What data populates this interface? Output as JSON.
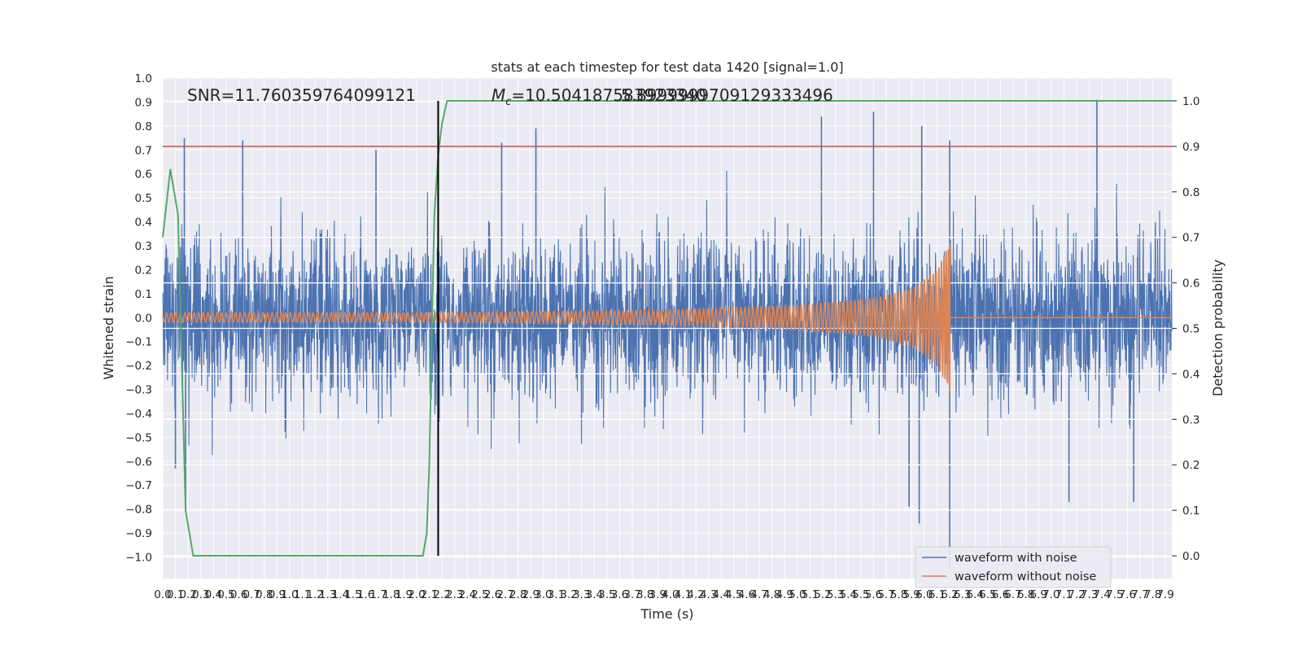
{
  "chart_data": {
    "type": "line",
    "title": "stats at each timestep for test data 1420 [signal=1.0]",
    "xlabel": "Time (s)",
    "ylabel": "Whitened strain",
    "y2label": "Detection probability",
    "xlim": [
      0.0,
      7.95
    ],
    "ylim": [
      -1.09,
      1.0
    ],
    "y2lim": [
      -0.05,
      1.05
    ],
    "x_ticks": [
      "0.0",
      "0.1",
      "0.2",
      "0.3",
      "0.4",
      "0.5",
      "0.6",
      "0.7",
      "0.8",
      "0.9",
      "1.0",
      "1.1",
      "1.2",
      "1.3",
      "1.4",
      "1.5",
      "1.6",
      "1.7",
      "1.8",
      "1.9",
      "2.0",
      "2.1",
      "2.2",
      "2.3",
      "2.4",
      "2.5",
      "2.6",
      "2.7",
      "2.8",
      "2.9",
      "3.0",
      "3.1",
      "3.2",
      "3.3",
      "3.4",
      "3.5",
      "3.6",
      "3.7",
      "3.8",
      "3.9",
      "4.0",
      "4.1",
      "4.2",
      "4.3",
      "4.4",
      "4.5",
      "4.6",
      "4.7",
      "4.8",
      "4.9",
      "5.0",
      "5.1",
      "5.2",
      "5.3",
      "5.4",
      "5.5",
      "5.6",
      "5.7",
      "5.8",
      "5.9",
      "6.0",
      "6.1",
      "6.2",
      "6.3",
      "6.4",
      "6.5",
      "6.6",
      "6.7",
      "6.8",
      "6.9",
      "7.0",
      "7.1",
      "7.2",
      "7.3",
      "7.4",
      "7.5",
      "7.6",
      "7.7",
      "7.8",
      "7.9"
    ],
    "y_ticks": [
      "1.0",
      "0.9",
      "0.8",
      "0.7",
      "0.6",
      "0.5",
      "0.4",
      "0.3",
      "0.2",
      "0.1",
      "0.0",
      "−0.1",
      "−0.2",
      "−0.3",
      "−0.4",
      "−0.5",
      "−0.6",
      "−0.7",
      "−0.8",
      "−0.9",
      "−1.0"
    ],
    "y2_ticks": [
      "1.0",
      "0.9",
      "0.8",
      "0.7",
      "0.6",
      "0.5",
      "0.4",
      "0.3",
      "0.2",
      "0.1",
      "0.0"
    ],
    "annotations": {
      "snr": "SNR=11.760359764099121",
      "mc_symbol": "M",
      "mc_sub": "c",
      "mc_value": "=10.504187583923340",
      "mc_overlap": "5.8999999709129333496"
    },
    "threshold_prob": 0.9,
    "merger_time": 2.17,
    "legend": [
      "waveform with noise",
      "waveform without noise"
    ],
    "series": [
      {
        "name": "waveform with noise",
        "color": "#4c72b0",
        "description_values": {
          "typical_amplitude": 0.3,
          "peaks": [
            [
              0.17,
              0.75
            ],
            [
              0.63,
              0.74
            ],
            [
              1.68,
              0.7
            ],
            [
              2.67,
              0.73
            ],
            [
              2.94,
              0.79
            ],
            [
              5.19,
              0.84
            ],
            [
              5.6,
              0.86
            ],
            [
              5.98,
              0.8
            ],
            [
              6.2,
              0.74
            ],
            [
              7.36,
              0.91
            ],
            [
              6.2,
              -1.05
            ],
            [
              5.96,
              -0.86
            ],
            [
              5.88,
              -0.79
            ],
            [
              0.18,
              -0.8
            ],
            [
              7.14,
              -0.77
            ],
            [
              7.65,
              -0.77
            ],
            [
              0.1,
              -0.63
            ]
          ]
        }
      },
      {
        "name": "waveform without noise",
        "color": "#dd8452",
        "envelope": [
          [
            0.0,
            0.02
          ],
          [
            2.0,
            0.02
          ],
          [
            3.0,
            0.025
          ],
          [
            4.0,
            0.032
          ],
          [
            5.0,
            0.05
          ],
          [
            5.6,
            0.08
          ],
          [
            5.9,
            0.12
          ],
          [
            6.1,
            0.2
          ],
          [
            6.2,
            0.31
          ]
        ],
        "merger": 6.2
      },
      {
        "name": "detection probability",
        "color": "#55a868",
        "axis": "right",
        "x": [
          0.0,
          0.06,
          0.12,
          0.18,
          0.24,
          0.3,
          0.6,
          1.2,
          1.8,
          2.0,
          2.05,
          2.08,
          2.1,
          2.12,
          2.14,
          2.17,
          2.2,
          2.24,
          2.28,
          2.3,
          3.0,
          5.0,
          7.95
        ],
        "y": [
          0.7,
          0.85,
          0.75,
          0.1,
          0.0,
          0.0,
          0.0,
          0.0,
          0.0,
          0.0,
          0.0,
          0.05,
          0.2,
          0.5,
          0.75,
          0.88,
          0.95,
          1.0,
          1.0,
          1.0,
          1.0,
          1.0,
          1.0
        ]
      }
    ],
    "colors": {
      "background": "#eaeaf2",
      "grid": "#ffffff",
      "threshold": "#c44e52",
      "merger_line": "#000000"
    }
  }
}
